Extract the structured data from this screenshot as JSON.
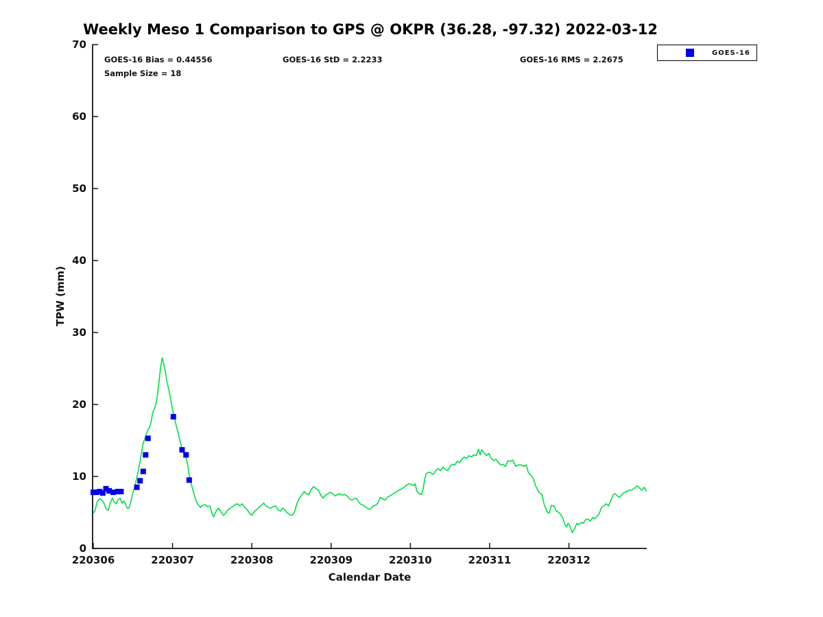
{
  "title": "Weekly Meso 1 Comparison to GPS @ OKPR (36.28, -97.32) 2022-03-12",
  "stats": {
    "bias": "GOES-16 Bias = 0.44556",
    "std": "GOES-16 StD = 2.2233",
    "rms": "GOES-16 RMS = 2.2675",
    "sample_size": "Sample Size = 18"
  },
  "legend": {
    "entries": [
      {
        "label": "GOES-16",
        "marker": "filled-square",
        "color": "#0000ee"
      }
    ]
  },
  "colors": {
    "gps_line": "#00dd44",
    "goes16_marker": "#0000ee",
    "axis": "#111111",
    "background": "#ffffff"
  },
  "chart_data": {
    "type": "line",
    "title": "Weekly Meso 1 Comparison to GPS @ OKPR (36.28, -97.32) 2022-03-12",
    "xlabel": "Calendar Date",
    "ylabel": "TPW (mm)",
    "x_tick_labels": [
      "220306",
      "220307",
      "220308",
      "220309",
      "220310",
      "220311",
      "220312"
    ],
    "y_ticks": [
      0,
      10,
      20,
      30,
      40,
      50,
      60,
      70
    ],
    "ylim": [
      0,
      70
    ],
    "xlim_days": [
      0,
      6.99
    ],
    "grid": false,
    "legend_position": "outside-top-right",
    "series": [
      {
        "name": "GPS",
        "type": "line",
        "color": "#00dd44",
        "points": [
          [
            0.0,
            4.9
          ],
          [
            0.02,
            5.2
          ],
          [
            0.05,
            6.5
          ],
          [
            0.08,
            6.9
          ],
          [
            0.11,
            6.7
          ],
          [
            0.14,
            6.2
          ],
          [
            0.16,
            5.5
          ],
          [
            0.19,
            5.3
          ],
          [
            0.21,
            6.2
          ],
          [
            0.24,
            7.0
          ],
          [
            0.26,
            6.5
          ],
          [
            0.29,
            6.2
          ],
          [
            0.31,
            6.7
          ],
          [
            0.34,
            7.0
          ],
          [
            0.36,
            6.3
          ],
          [
            0.39,
            6.6
          ],
          [
            0.41,
            6.0
          ],
          [
            0.43,
            5.6
          ],
          [
            0.45,
            5.6
          ],
          [
            0.47,
            6.3
          ],
          [
            0.49,
            7.3
          ],
          [
            0.51,
            8.1
          ],
          [
            0.53,
            8.9
          ],
          [
            0.55,
            9.9
          ],
          [
            0.57,
            10.9
          ],
          [
            0.59,
            12.1
          ],
          [
            0.61,
            13.4
          ],
          [
            0.63,
            14.6
          ],
          [
            0.65,
            15.2
          ],
          [
            0.67,
            15.9
          ],
          [
            0.69,
            16.5
          ],
          [
            0.71,
            16.8
          ],
          [
            0.73,
            17.6
          ],
          [
            0.75,
            18.9
          ],
          [
            0.77,
            19.4
          ],
          [
            0.79,
            20.0
          ],
          [
            0.81,
            21.3
          ],
          [
            0.83,
            23.2
          ],
          [
            0.85,
            25.3
          ],
          [
            0.87,
            26.5
          ],
          [
            0.89,
            25.6
          ],
          [
            0.91,
            24.5
          ],
          [
            0.93,
            23.1
          ],
          [
            0.95,
            22.2
          ],
          [
            0.97,
            21.1
          ],
          [
            0.99,
            19.9
          ],
          [
            1.01,
            18.8
          ],
          [
            1.03,
            17.8
          ],
          [
            1.05,
            16.9
          ],
          [
            1.07,
            16.1
          ],
          [
            1.09,
            15.1
          ],
          [
            1.11,
            14.3
          ],
          [
            1.13,
            13.5
          ],
          [
            1.15,
            13.0
          ],
          [
            1.17,
            12.6
          ],
          [
            1.19,
            11.6
          ],
          [
            1.21,
            10.2
          ],
          [
            1.23,
            9.2
          ],
          [
            1.26,
            8.0
          ],
          [
            1.29,
            6.8
          ],
          [
            1.32,
            6.1
          ],
          [
            1.35,
            5.7
          ],
          [
            1.38,
            6.0
          ],
          [
            1.41,
            6.1
          ],
          [
            1.44,
            5.8
          ],
          [
            1.47,
            5.9
          ],
          [
            1.5,
            4.8
          ],
          [
            1.52,
            4.4
          ],
          [
            1.55,
            5.2
          ],
          [
            1.58,
            5.6
          ],
          [
            1.61,
            5.1
          ],
          [
            1.64,
            4.6
          ],
          [
            1.67,
            4.9
          ],
          [
            1.7,
            5.4
          ],
          [
            1.73,
            5.6
          ],
          [
            1.76,
            5.8
          ],
          [
            1.79,
            6.1
          ],
          [
            1.82,
            6.2
          ],
          [
            1.85,
            5.9
          ],
          [
            1.88,
            6.2
          ],
          [
            1.91,
            5.7
          ],
          [
            1.94,
            5.4
          ],
          [
            1.97,
            4.9
          ],
          [
            2.0,
            4.6
          ],
          [
            2.03,
            5.1
          ],
          [
            2.06,
            5.4
          ],
          [
            2.09,
            5.7
          ],
          [
            2.12,
            6.0
          ],
          [
            2.15,
            6.3
          ],
          [
            2.18,
            5.9
          ],
          [
            2.21,
            5.7
          ],
          [
            2.24,
            5.6
          ],
          [
            2.27,
            5.8
          ],
          [
            2.3,
            5.9
          ],
          [
            2.33,
            5.4
          ],
          [
            2.36,
            5.2
          ],
          [
            2.39,
            5.6
          ],
          [
            2.42,
            5.3
          ],
          [
            2.45,
            4.9
          ],
          [
            2.48,
            4.7
          ],
          [
            2.51,
            4.6
          ],
          [
            2.54,
            5.1
          ],
          [
            2.57,
            6.3
          ],
          [
            2.6,
            7.0
          ],
          [
            2.63,
            7.4
          ],
          [
            2.66,
            7.9
          ],
          [
            2.69,
            7.6
          ],
          [
            2.72,
            7.5
          ],
          [
            2.75,
            8.2
          ],
          [
            2.78,
            8.6
          ],
          [
            2.81,
            8.3
          ],
          [
            2.84,
            8.1
          ],
          [
            2.87,
            7.4
          ],
          [
            2.9,
            7.0
          ],
          [
            2.93,
            7.4
          ],
          [
            2.96,
            7.6
          ],
          [
            2.99,
            7.8
          ],
          [
            3.02,
            7.6
          ],
          [
            3.05,
            7.3
          ],
          [
            3.08,
            7.5
          ],
          [
            3.11,
            7.6
          ],
          [
            3.14,
            7.4
          ],
          [
            3.17,
            7.5
          ],
          [
            3.2,
            7.3
          ],
          [
            3.23,
            6.9
          ],
          [
            3.26,
            6.7
          ],
          [
            3.29,
            6.9
          ],
          [
            3.32,
            7.0
          ],
          [
            3.35,
            6.4
          ],
          [
            3.38,
            6.1
          ],
          [
            3.41,
            6.0
          ],
          [
            3.44,
            5.7
          ],
          [
            3.47,
            5.5
          ],
          [
            3.5,
            5.5
          ],
          [
            3.53,
            5.9
          ],
          [
            3.56,
            6.0
          ],
          [
            3.59,
            6.3
          ],
          [
            3.62,
            7.1
          ],
          [
            3.65,
            6.9
          ],
          [
            3.68,
            6.7
          ],
          [
            3.71,
            7.1
          ],
          [
            3.74,
            7.3
          ],
          [
            3.77,
            7.5
          ],
          [
            3.8,
            7.7
          ],
          [
            3.83,
            7.9
          ],
          [
            3.86,
            8.1
          ],
          [
            3.89,
            8.3
          ],
          [
            3.92,
            8.5
          ],
          [
            3.95,
            8.8
          ],
          [
            3.98,
            9.0
          ],
          [
            4.01,
            8.9
          ],
          [
            4.04,
            8.7
          ],
          [
            4.06,
            9.0
          ],
          [
            4.08,
            8.0
          ],
          [
            4.11,
            7.6
          ],
          [
            4.14,
            7.5
          ],
          [
            4.16,
            8.2
          ],
          [
            4.18,
            9.6
          ],
          [
            4.2,
            10.4
          ],
          [
            4.23,
            10.6
          ],
          [
            4.26,
            10.5
          ],
          [
            4.29,
            10.3
          ],
          [
            4.32,
            10.8
          ],
          [
            4.35,
            11.1
          ],
          [
            4.38,
            10.8
          ],
          [
            4.41,
            11.3
          ],
          [
            4.44,
            11.0
          ],
          [
            4.47,
            10.8
          ],
          [
            4.5,
            11.4
          ],
          [
            4.53,
            11.7
          ],
          [
            4.56,
            11.6
          ],
          [
            4.59,
            12.1
          ],
          [
            4.62,
            11.9
          ],
          [
            4.65,
            12.4
          ],
          [
            4.68,
            12.7
          ],
          [
            4.71,
            12.5
          ],
          [
            4.74,
            12.9
          ],
          [
            4.77,
            12.7
          ],
          [
            4.8,
            13.0
          ],
          [
            4.83,
            12.9
          ],
          [
            4.86,
            13.8
          ],
          [
            4.88,
            13.0
          ],
          [
            4.9,
            13.7
          ],
          [
            4.93,
            13.3
          ],
          [
            4.96,
            12.9
          ],
          [
            4.99,
            13.2
          ],
          [
            5.02,
            12.5
          ],
          [
            5.05,
            12.2
          ],
          [
            5.08,
            12.4
          ],
          [
            5.11,
            11.9
          ],
          [
            5.14,
            11.6
          ],
          [
            5.17,
            11.7
          ],
          [
            5.2,
            11.4
          ],
          [
            5.23,
            12.2
          ],
          [
            5.26,
            12.1
          ],
          [
            5.29,
            12.3
          ],
          [
            5.33,
            11.4
          ],
          [
            5.36,
            11.6
          ],
          [
            5.4,
            11.6
          ],
          [
            5.43,
            11.4
          ],
          [
            5.46,
            11.6
          ],
          [
            5.49,
            10.5
          ],
          [
            5.52,
            10.2
          ],
          [
            5.55,
            9.7
          ],
          [
            5.58,
            8.7
          ],
          [
            5.62,
            7.8
          ],
          [
            5.66,
            7.5
          ],
          [
            5.69,
            6.0
          ],
          [
            5.73,
            5.0
          ],
          [
            5.75,
            4.9
          ],
          [
            5.78,
            6.0
          ],
          [
            5.81,
            5.9
          ],
          [
            5.84,
            5.2
          ],
          [
            5.86,
            5.1
          ],
          [
            5.89,
            4.8
          ],
          [
            5.92,
            4.3
          ],
          [
            5.95,
            3.3
          ],
          [
            5.97,
            3.0
          ],
          [
            5.99,
            3.5
          ],
          [
            6.01,
            3.2
          ],
          [
            6.04,
            2.2
          ],
          [
            6.07,
            2.7
          ],
          [
            6.1,
            3.5
          ],
          [
            6.12,
            3.3
          ],
          [
            6.15,
            3.6
          ],
          [
            6.18,
            3.5
          ],
          [
            6.21,
            4.0
          ],
          [
            6.24,
            4.1
          ],
          [
            6.27,
            3.8
          ],
          [
            6.3,
            4.3
          ],
          [
            6.32,
            4.1
          ],
          [
            6.35,
            4.4
          ],
          [
            6.38,
            4.8
          ],
          [
            6.41,
            5.7
          ],
          [
            6.44,
            5.9
          ],
          [
            6.47,
            6.2
          ],
          [
            6.5,
            5.9
          ],
          [
            6.53,
            6.7
          ],
          [
            6.56,
            7.5
          ],
          [
            6.58,
            7.6
          ],
          [
            6.61,
            7.3
          ],
          [
            6.64,
            7.1
          ],
          [
            6.67,
            7.5
          ],
          [
            6.7,
            7.8
          ],
          [
            6.73,
            7.9
          ],
          [
            6.76,
            8.1
          ],
          [
            6.79,
            8.1
          ],
          [
            6.83,
            8.4
          ],
          [
            6.86,
            8.7
          ],
          [
            6.89,
            8.4
          ],
          [
            6.92,
            8.1
          ],
          [
            6.95,
            8.5
          ],
          [
            6.98,
            7.9
          ]
        ]
      },
      {
        "name": "GOES-16",
        "type": "scatter",
        "color": "#0000ee",
        "points": [
          [
            0.0,
            7.8
          ],
          [
            0.04,
            7.8
          ],
          [
            0.08,
            7.9
          ],
          [
            0.12,
            7.7
          ],
          [
            0.16,
            8.3
          ],
          [
            0.2,
            8.0
          ],
          [
            0.25,
            7.8
          ],
          [
            0.31,
            7.9
          ],
          [
            0.35,
            7.9
          ],
          [
            0.55,
            8.5
          ],
          [
            0.59,
            9.4
          ],
          [
            0.63,
            10.7
          ],
          [
            0.66,
            13.0
          ],
          [
            0.69,
            15.3
          ],
          [
            1.01,
            18.3
          ],
          [
            1.12,
            13.7
          ],
          [
            1.17,
            13.0
          ],
          [
            1.21,
            9.5
          ]
        ]
      }
    ]
  }
}
